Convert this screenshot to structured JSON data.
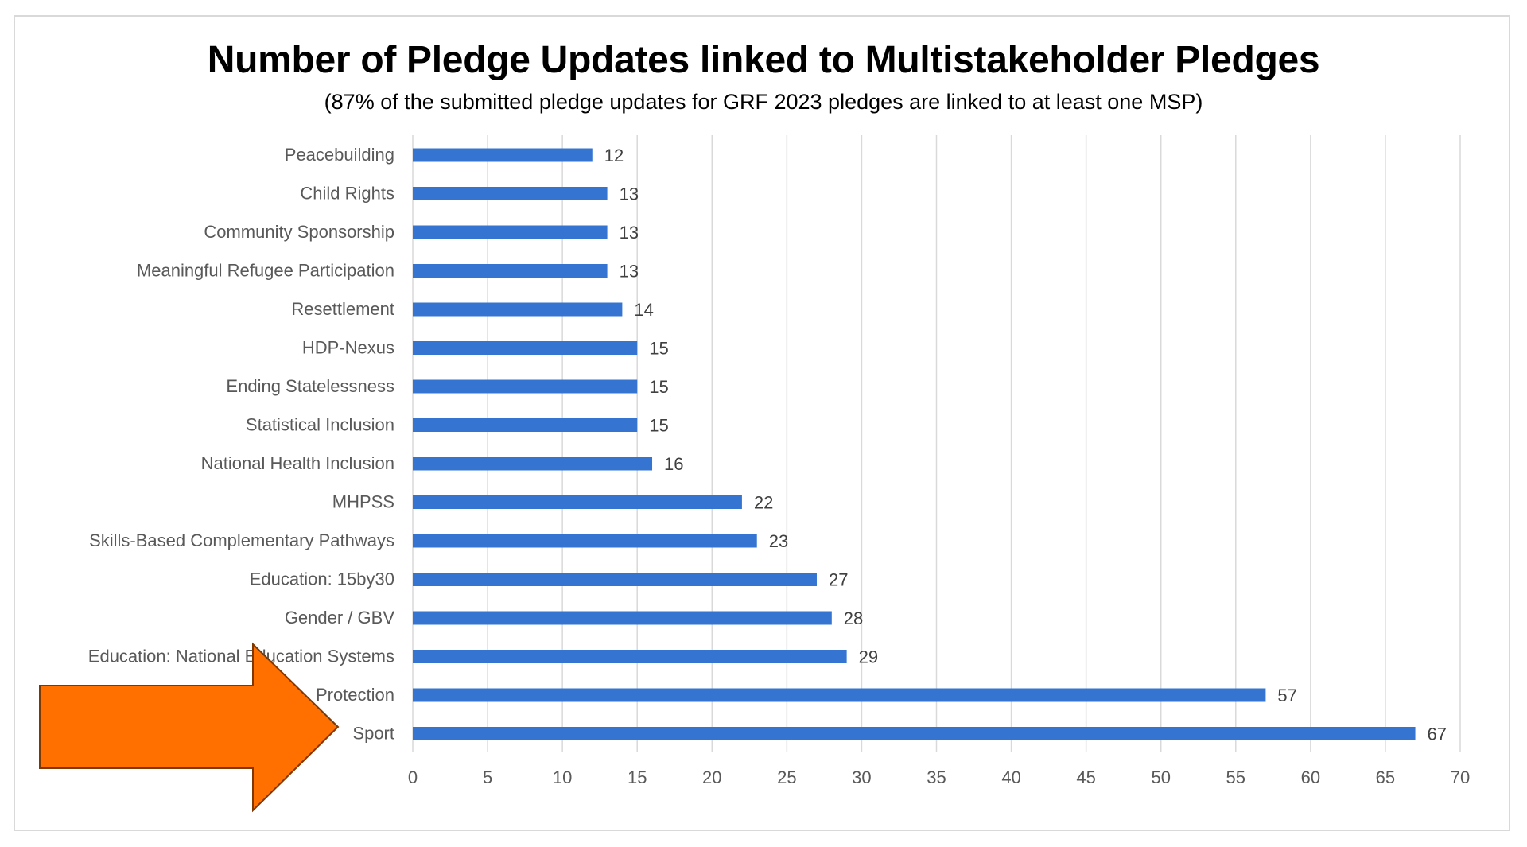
{
  "chart_data": {
    "type": "bar",
    "orientation": "horizontal",
    "title": "Number of Pledge Updates linked to Multistakeholder Pledges",
    "subtitle": "(87% of the submitted pledge updates for GRF 2023 pledges are linked to at least one MSP)",
    "categories": [
      "Peacebuilding",
      "Child Rights",
      "Community Sponsorship",
      "Meaningful Refugee Participation",
      "Resettlement",
      "HDP-Nexus",
      "Ending Statelessness",
      "Statistical Inclusion",
      "National Health Inclusion",
      "MHPSS",
      "Skills-Based Complementary Pathways",
      "Education: 15by30",
      "Gender / GBV",
      "Education: National Education Systems",
      "Protection",
      "Sport"
    ],
    "values": [
      12,
      13,
      13,
      13,
      14,
      15,
      15,
      15,
      16,
      22,
      23,
      27,
      28,
      29,
      57,
      67
    ],
    "xlim": [
      0,
      70
    ],
    "xticks": [
      "0",
      "5",
      "10",
      "15",
      "20",
      "25",
      "30",
      "35",
      "40",
      "45",
      "50",
      "55",
      "60",
      "65",
      "70"
    ],
    "grid": true,
    "legend": "none",
    "bar_color": "#3575D1",
    "annotation": {
      "shape": "arrow",
      "icon": "arrow-right-icon",
      "fill": "#FF7000",
      "stroke": "#7F3800",
      "points_to": "Sport"
    }
  }
}
